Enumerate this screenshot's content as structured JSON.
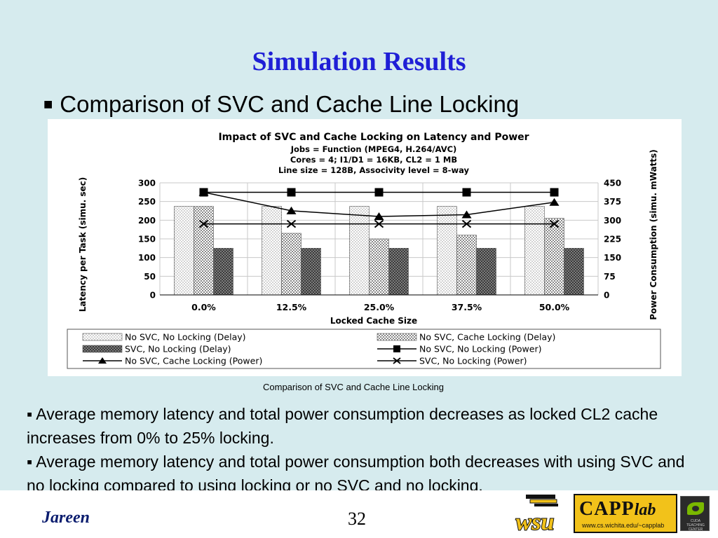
{
  "slide": {
    "title": "Simulation Results",
    "subtitle_bullet": "■",
    "subtitle": "Comparison of SVC and Cache Line Locking",
    "caption": "Comparison of SVC and Cache Line Locking",
    "body": [
      "▪  Average memory latency  and total power consumption decreases  as locked CL2 cache increases from 0% to 25% locking.",
      "▪ Average memory latency and total power consumption both decreases with using SVC and no locking compared to using locking or no SVC and no locking."
    ],
    "footer": {
      "author": "Jareen",
      "page_number": "32",
      "capp_logo_main": "CAPP",
      "capp_logo_lab": "lab",
      "capp_logo_url": "www.cs.wichita.edu/~capplab",
      "wsu_logo_text": "wsu",
      "nvidia_logo_text": "CUDA TEACHING CENTER"
    }
  },
  "colors": {
    "title": "#1f1fd6",
    "background": "#d6ebee",
    "author": "#0a1c6e",
    "capp_logo": "#f2c21a",
    "wsu_logo": "#f2c21a"
  },
  "chart_data": {
    "type": "bar",
    "title": "Impact of SVC and Cache Locking on Latency and Power",
    "subtitle_lines": [
      "Jobs = Function (MPEG4, H.264/AVC)",
      "Cores = 4; I1/D1 = 16KB, CL2 = 1 MB",
      "Line size = 128B, Associvity level = 8-way"
    ],
    "xlabel": "Locked Cache Size",
    "ylabel": "Latency per Task (simu. sec)",
    "y2label": "Power Consumption (simu. mWatts)",
    "categories": [
      "0.0%",
      "12.5%",
      "25.0%",
      "37.5%",
      "50.0%"
    ],
    "ylim": [
      0,
      300
    ],
    "yticks": [
      "0",
      "50",
      "100",
      "150",
      "200",
      "250",
      "300"
    ],
    "y2lim": [
      0,
      450
    ],
    "y2ticks": [
      "0",
      "75",
      "150",
      "225",
      "300",
      "375",
      "450"
    ],
    "grid": true,
    "legend_position": "bottom",
    "bar_series": [
      {
        "name": "No SVC, No Locking (Delay)",
        "values": [
          237,
          237,
          237,
          237,
          237
        ]
      },
      {
        "name": "No SVC, Cache Locking (Delay)",
        "values": [
          237,
          165,
          150,
          160,
          205
        ]
      },
      {
        "name": "SVC, No Locking (Delay)",
        "values": [
          125,
          125,
          125,
          125,
          125
        ]
      }
    ],
    "line_series": [
      {
        "name": "No SVC, No Locking (Power)",
        "marker": "square",
        "values": [
          412,
          412,
          412,
          412,
          412
        ]
      },
      {
        "name": "No SVC, Cache Locking (Power)",
        "marker": "triangle",
        "values": [
          412,
          338,
          315,
          322,
          372
        ]
      },
      {
        "name": "SVC, No Locking (Power)",
        "marker": "x",
        "values": [
          285,
          285,
          285,
          285,
          285
        ]
      }
    ]
  }
}
